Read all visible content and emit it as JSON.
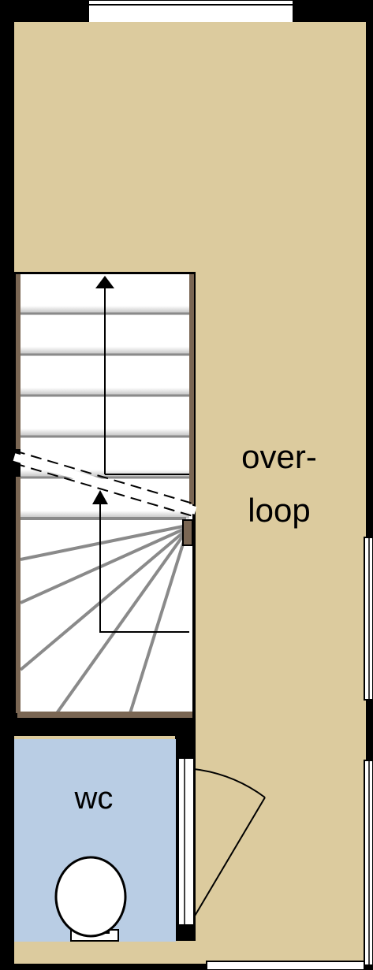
{
  "rooms": {
    "landing": {
      "label_line1": "over-",
      "label_line2": "loop"
    },
    "toilet": {
      "label": "wc"
    }
  },
  "colors": {
    "wall": "#000000",
    "landing_floor": "#dccb9e",
    "toilet_floor": "#b9cde4",
    "stair_floor": "#ffffff",
    "stair_stringer": "#7a6653",
    "window_frame": "#ffffff"
  },
  "icons": [
    "arrow-up-icon",
    "toilet-icon",
    "door-swing-icon"
  ]
}
